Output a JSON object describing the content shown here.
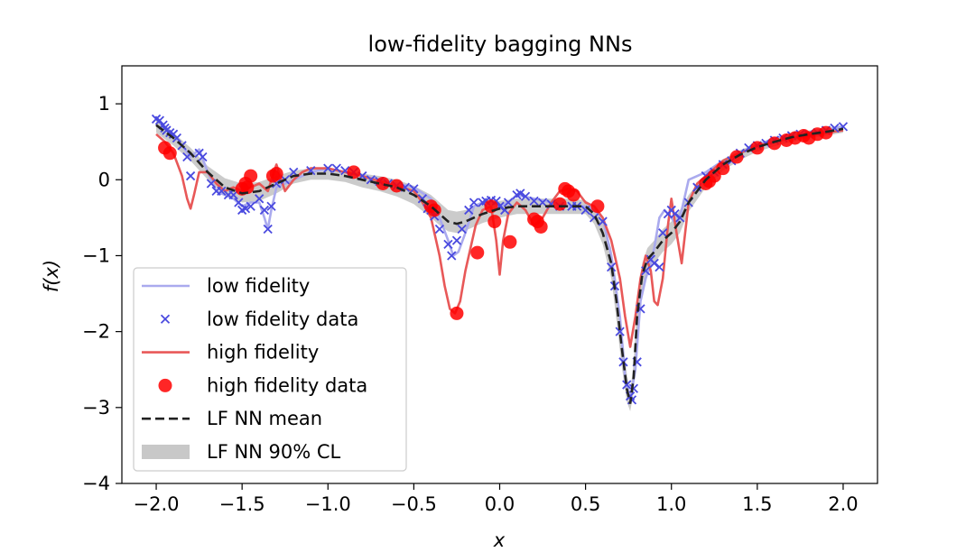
{
  "chart_data": {
    "type": "line",
    "title": "low-fidelity bagging NNs",
    "xlabel": "x",
    "ylabel": "f(x)",
    "xlim": [
      -2.2,
      2.2
    ],
    "ylim": [
      -4,
      1.5
    ],
    "xticks": [
      -2.0,
      -1.5,
      -1.0,
      -0.5,
      0.0,
      0.5,
      1.0,
      1.5,
      2.0
    ],
    "xtick_labels": [
      "−2.0",
      "−1.5",
      "−1.0",
      "−0.5",
      "0.0",
      "0.5",
      "1.0",
      "1.5",
      "2.0"
    ],
    "yticks": [
      1,
      0,
      -1,
      -2,
      -3,
      -4
    ],
    "ytick_labels": [
      "1",
      "0",
      "−1",
      "−2",
      "−3",
      "−4"
    ],
    "grid": false,
    "legend_position": "lower-left",
    "colors": {
      "low_fidelity": "#aaaaee",
      "low_fidelity_data": "#4a4adf",
      "high_fidelity": "#e85858",
      "high_fidelity_data": "#ff0000",
      "nn_mean": "#222222",
      "nn_band": "#c8c8c8"
    },
    "legend": [
      {
        "key": "low_fidelity",
        "label": "low fidelity",
        "style": "line"
      },
      {
        "key": "low_fidelity_data",
        "label": "low fidelity data",
        "style": "x-marker"
      },
      {
        "key": "high_fidelity",
        "label": "high fidelity",
        "style": "line"
      },
      {
        "key": "high_fidelity_data",
        "label": "high fidelity data",
        "style": "circle-marker"
      },
      {
        "key": "nn_mean",
        "label": "LF NN mean",
        "style": "dashed"
      },
      {
        "key": "nn_band",
        "label": "LF NN 90% CL",
        "style": "band"
      }
    ],
    "series": [
      {
        "key": "high_fidelity",
        "x": [
          -2.0,
          -1.95,
          -1.9,
          -1.85,
          -1.82,
          -1.8,
          -1.78,
          -1.75,
          -1.7,
          -1.65,
          -1.6,
          -1.55,
          -1.5,
          -1.45,
          -1.4,
          -1.35,
          -1.3,
          -1.25,
          -1.2,
          -1.15,
          -1.1,
          -1.0,
          -0.9,
          -0.8,
          -0.7,
          -0.6,
          -0.5,
          -0.45,
          -0.4,
          -0.35,
          -0.32,
          -0.29,
          -0.26,
          -0.23,
          -0.2,
          -0.17,
          -0.14,
          -0.1,
          -0.05,
          -0.02,
          0.0,
          0.02,
          0.05,
          0.1,
          0.15,
          0.2,
          0.25,
          0.3,
          0.35,
          0.4,
          0.45,
          0.5,
          0.55,
          0.6,
          0.65,
          0.7,
          0.73,
          0.76,
          0.79,
          0.82,
          0.85,
          0.88,
          0.9,
          0.92,
          0.95,
          0.98,
          1.0,
          1.03,
          1.06,
          1.1,
          1.15,
          1.2,
          1.3,
          1.4,
          1.5,
          1.6,
          1.7,
          1.8,
          1.9,
          2.0
        ],
        "y": [
          0.6,
          0.5,
          0.35,
          0.05,
          -0.25,
          -0.38,
          -0.2,
          0.1,
          0.1,
          -0.05,
          -0.15,
          -0.1,
          -0.15,
          -0.1,
          -0.05,
          -0.15,
          0.2,
          -0.15,
          0.0,
          0.1,
          0.15,
          0.15,
          0.1,
          0.05,
          -0.02,
          -0.08,
          -0.15,
          -0.3,
          -0.5,
          -1.0,
          -1.4,
          -1.7,
          -1.76,
          -1.6,
          -1.2,
          -0.9,
          -0.6,
          -0.4,
          -0.35,
          -0.8,
          -1.25,
          -0.8,
          -0.45,
          -0.3,
          -0.4,
          -0.6,
          -0.5,
          -0.3,
          -0.15,
          -0.12,
          -0.15,
          -0.3,
          -0.35,
          -0.5,
          -0.8,
          -1.3,
          -1.8,
          -2.2,
          -1.8,
          -1.3,
          -1.0,
          -1.2,
          -1.6,
          -1.65,
          -1.3,
          -0.6,
          -0.25,
          -0.7,
          -1.1,
          -0.3,
          -0.05,
          0.05,
          0.25,
          0.35,
          0.45,
          0.5,
          0.55,
          0.58,
          0.62,
          0.65
        ]
      },
      {
        "key": "low_fidelity",
        "x": [
          -2.0,
          -1.9,
          -1.8,
          -1.75,
          -1.7,
          -1.65,
          -1.6,
          -1.55,
          -1.5,
          -1.45,
          -1.4,
          -1.37,
          -1.35,
          -1.33,
          -1.3,
          -1.2,
          -1.1,
          -1.0,
          -0.9,
          -0.8,
          -0.7,
          -0.6,
          -0.5,
          -0.4,
          -0.35,
          -0.3,
          -0.27,
          -0.24,
          -0.2,
          -0.15,
          -0.1,
          -0.05,
          0.0,
          0.05,
          0.1,
          0.2,
          0.3,
          0.4,
          0.5,
          0.55,
          0.6,
          0.65,
          0.7,
          0.73,
          0.76,
          0.79,
          0.82,
          0.85,
          0.88,
          0.9,
          0.93,
          0.96,
          1.0,
          1.03,
          1.06,
          1.1,
          1.2,
          1.3,
          1.4,
          1.5,
          1.6,
          1.7,
          1.8,
          1.9,
          2.0
        ],
        "y": [
          0.8,
          0.6,
          0.3,
          0.4,
          0.1,
          -0.15,
          -0.2,
          -0.25,
          -0.35,
          -0.3,
          -0.3,
          -0.5,
          -0.65,
          -0.4,
          -0.1,
          0.0,
          0.1,
          0.15,
          0.1,
          0.05,
          0.0,
          -0.05,
          -0.1,
          -0.25,
          -0.5,
          -0.8,
          -1.0,
          -0.95,
          -0.7,
          -0.35,
          -0.3,
          -0.3,
          -0.35,
          -0.3,
          -0.2,
          -0.25,
          -0.3,
          -0.35,
          -0.35,
          -0.4,
          -0.5,
          -1.0,
          -1.8,
          -2.6,
          -2.9,
          -2.5,
          -1.6,
          -1.3,
          -1.1,
          -0.9,
          -0.5,
          -0.4,
          -0.5,
          -0.6,
          -0.4,
          0.0,
          0.1,
          0.25,
          0.35,
          0.45,
          0.55,
          0.58,
          0.62,
          0.65,
          0.7
        ]
      },
      {
        "key": "nn_mean",
        "x": [
          -2.0,
          -1.9,
          -1.8,
          -1.7,
          -1.6,
          -1.5,
          -1.4,
          -1.3,
          -1.2,
          -1.1,
          -1.0,
          -0.9,
          -0.8,
          -0.7,
          -0.6,
          -0.5,
          -0.4,
          -0.35,
          -0.3,
          -0.25,
          -0.2,
          -0.1,
          0.0,
          0.1,
          0.2,
          0.3,
          0.4,
          0.5,
          0.55,
          0.6,
          0.65,
          0.68,
          0.71,
          0.74,
          0.76,
          0.78,
          0.8,
          0.83,
          0.86,
          0.9,
          0.95,
          1.0,
          1.05,
          1.1,
          1.2,
          1.3,
          1.4,
          1.5,
          1.6,
          1.7,
          1.8,
          1.9,
          2.0
        ],
        "y": [
          0.72,
          0.55,
          0.35,
          0.1,
          -0.1,
          -0.18,
          -0.15,
          -0.05,
          0.05,
          0.08,
          0.08,
          0.05,
          0.0,
          -0.05,
          -0.1,
          -0.2,
          -0.35,
          -0.45,
          -0.55,
          -0.58,
          -0.55,
          -0.45,
          -0.38,
          -0.35,
          -0.35,
          -0.35,
          -0.35,
          -0.35,
          -0.45,
          -0.7,
          -1.1,
          -1.6,
          -2.2,
          -2.75,
          -2.95,
          -2.6,
          -1.8,
          -1.25,
          -1.05,
          -0.95,
          -0.8,
          -0.7,
          -0.55,
          -0.3,
          0.0,
          0.2,
          0.33,
          0.43,
          0.5,
          0.56,
          0.6,
          0.63,
          0.67
        ]
      },
      {
        "key": "nn_band",
        "x": [
          -2.0,
          -1.9,
          -1.8,
          -1.7,
          -1.6,
          -1.5,
          -1.4,
          -1.3,
          -1.2,
          -1.1,
          -1.0,
          -0.9,
          -0.8,
          -0.7,
          -0.6,
          -0.5,
          -0.4,
          -0.35,
          -0.3,
          -0.25,
          -0.2,
          -0.1,
          0.0,
          0.1,
          0.2,
          0.3,
          0.4,
          0.5,
          0.55,
          0.6,
          0.65,
          0.68,
          0.71,
          0.74,
          0.76,
          0.78,
          0.8,
          0.83,
          0.86,
          0.9,
          0.95,
          1.0,
          1.05,
          1.1,
          1.2,
          1.3,
          1.4,
          1.5,
          1.6,
          1.7,
          1.8,
          1.9,
          2.0
        ],
        "upper": [
          0.8,
          0.62,
          0.42,
          0.18,
          0.02,
          -0.05,
          -0.03,
          0.05,
          0.12,
          0.15,
          0.15,
          0.12,
          0.08,
          0.05,
          0.0,
          -0.08,
          -0.2,
          -0.3,
          -0.4,
          -0.42,
          -0.4,
          -0.33,
          -0.28,
          -0.25,
          -0.25,
          -0.25,
          -0.25,
          -0.27,
          -0.35,
          -0.55,
          -0.9,
          -1.35,
          -1.95,
          -2.55,
          -2.8,
          -2.4,
          -1.6,
          -1.1,
          -0.9,
          -0.8,
          -0.65,
          -0.55,
          -0.4,
          -0.2,
          0.08,
          0.27,
          0.39,
          0.48,
          0.55,
          0.61,
          0.65,
          0.68,
          0.72
        ],
        "lower": [
          0.62,
          0.45,
          0.25,
          0.0,
          -0.2,
          -0.3,
          -0.28,
          -0.18,
          -0.05,
          0.0,
          0.0,
          -0.03,
          -0.1,
          -0.15,
          -0.22,
          -0.32,
          -0.5,
          -0.6,
          -0.68,
          -0.7,
          -0.67,
          -0.57,
          -0.5,
          -0.45,
          -0.45,
          -0.45,
          -0.45,
          -0.45,
          -0.58,
          -0.85,
          -1.3,
          -1.85,
          -2.45,
          -2.92,
          -3.05,
          -2.8,
          -2.0,
          -1.45,
          -1.25,
          -1.1,
          -0.95,
          -0.85,
          -0.7,
          -0.42,
          -0.1,
          0.12,
          0.26,
          0.37,
          0.44,
          0.5,
          0.55,
          0.58,
          0.62
        ]
      },
      {
        "key": "low_fidelity_data",
        "x": [
          -2.0,
          -1.98,
          -1.96,
          -1.95,
          -1.94,
          -1.92,
          -1.9,
          -1.88,
          -1.85,
          -1.82,
          -1.8,
          -1.75,
          -1.73,
          -1.68,
          -1.65,
          -1.62,
          -1.58,
          -1.55,
          -1.52,
          -1.5,
          -1.48,
          -1.45,
          -1.4,
          -1.37,
          -1.35,
          -1.33,
          -1.3,
          -1.25,
          -1.2,
          -1.1,
          -1.0,
          -0.95,
          -0.9,
          -0.85,
          -0.8,
          -0.75,
          -0.7,
          -0.65,
          -0.6,
          -0.55,
          -0.5,
          -0.45,
          -0.42,
          -0.4,
          -0.38,
          -0.35,
          -0.3,
          -0.28,
          -0.25,
          -0.22,
          -0.18,
          -0.15,
          -0.1,
          -0.08,
          -0.05,
          -0.02,
          0.0,
          0.03,
          0.05,
          0.1,
          0.12,
          0.15,
          0.2,
          0.25,
          0.3,
          0.35,
          0.42,
          0.45,
          0.5,
          0.55,
          0.6,
          0.65,
          0.67,
          0.7,
          0.72,
          0.74,
          0.76,
          0.77,
          0.78,
          0.8,
          0.82,
          0.85,
          0.88,
          0.9,
          0.93,
          0.95,
          0.98,
          1.0,
          1.02,
          1.05,
          1.1,
          1.15,
          1.2,
          1.25,
          1.3,
          1.35,
          1.4,
          1.45,
          1.5,
          1.55,
          1.6,
          1.65,
          1.7,
          1.75,
          1.8,
          1.85,
          1.9,
          1.95,
          2.0
        ],
        "y": [
          0.8,
          0.78,
          0.72,
          0.68,
          0.65,
          0.62,
          0.6,
          0.55,
          0.45,
          0.3,
          0.05,
          0.35,
          0.3,
          -0.05,
          -0.15,
          -0.15,
          -0.2,
          -0.2,
          -0.3,
          -0.4,
          -0.38,
          -0.35,
          -0.25,
          -0.4,
          -0.65,
          -0.35,
          -0.05,
          0.0,
          0.1,
          0.12,
          0.15,
          0.15,
          0.12,
          0.1,
          0.05,
          0.0,
          -0.02,
          -0.05,
          -0.08,
          -0.1,
          -0.12,
          -0.25,
          -0.38,
          -0.4,
          -0.48,
          -0.65,
          -0.85,
          -1.0,
          -0.8,
          -0.65,
          -0.4,
          -0.3,
          -0.3,
          -0.28,
          -0.27,
          -0.28,
          -0.35,
          -0.4,
          -0.3,
          -0.2,
          -0.18,
          -0.22,
          -0.28,
          -0.3,
          -0.32,
          -0.35,
          -0.35,
          -0.35,
          -0.4,
          -0.5,
          -0.55,
          -1.15,
          -1.4,
          -2.0,
          -2.4,
          -2.7,
          -2.85,
          -2.9,
          -2.75,
          -2.4,
          -1.7,
          -1.2,
          -1.05,
          -1.1,
          -1.15,
          -0.7,
          -0.45,
          -0.4,
          -0.45,
          -0.5,
          -0.3,
          -0.1,
          0.05,
          0.1,
          0.2,
          0.25,
          0.35,
          0.42,
          0.45,
          0.48,
          0.52,
          0.55,
          0.58,
          0.6,
          0.6,
          0.62,
          0.65,
          0.68,
          0.7
        ]
      },
      {
        "key": "high_fidelity_data",
        "x": [
          -1.95,
          -1.92,
          -1.5,
          -1.48,
          -1.47,
          -1.45,
          -1.32,
          -1.3,
          -0.85,
          -0.68,
          -0.6,
          -0.4,
          -0.38,
          -0.25,
          -0.13,
          -0.05,
          -0.03,
          0.06,
          0.2,
          0.22,
          0.24,
          0.35,
          0.38,
          0.4,
          0.43,
          0.57,
          1.2,
          1.22,
          1.25,
          1.3,
          1.38,
          1.5,
          1.6,
          1.67,
          1.72,
          1.77,
          1.8,
          1.85,
          1.9
        ],
        "y": [
          0.42,
          0.35,
          -0.12,
          -0.05,
          -0.1,
          0.05,
          0.05,
          0.08,
          0.1,
          -0.05,
          -0.08,
          -0.35,
          -0.4,
          -1.76,
          -0.96,
          -0.35,
          -0.55,
          -0.82,
          -0.52,
          -0.55,
          -0.62,
          -0.32,
          -0.12,
          -0.15,
          -0.2,
          -0.35,
          -0.05,
          -0.02,
          0.05,
          0.15,
          0.3,
          0.42,
          0.48,
          0.52,
          0.55,
          0.58,
          0.55,
          0.6,
          0.62
        ]
      }
    ]
  }
}
